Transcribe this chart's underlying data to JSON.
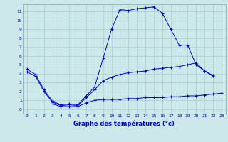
{
  "title": "Graphe des températures (°c)",
  "background_color": "#cce8e8",
  "grid_color": "#aacccc",
  "line_color": "#0000cc",
  "x_labels": [
    "0",
    "1",
    "2",
    "3",
    "4",
    "5",
    "6",
    "7",
    "8",
    "9",
    "10",
    "11",
    "12",
    "13",
    "14",
    "15",
    "16",
    "17",
    "18",
    "19",
    "20",
    "21",
    "22",
    "23"
  ],
  "y_labels": [
    "0",
    "1",
    "2",
    "3",
    "4",
    "5",
    "6",
    "7",
    "8",
    "9",
    "10",
    "11"
  ],
  "ylim": [
    -0.5,
    11.8
  ],
  "xlim": [
    -0.5,
    23.5
  ],
  "line1_x": [
    0,
    1,
    2,
    3,
    4,
    5,
    6,
    7,
    8,
    9,
    10,
    11,
    12,
    13,
    14,
    15,
    16,
    17,
    18,
    19,
    20,
    21,
    22
  ],
  "line1_y": [
    4.5,
    3.9,
    2.2,
    0.9,
    0.5,
    0.6,
    0.5,
    1.5,
    2.5,
    5.7,
    9.0,
    11.2,
    11.1,
    11.3,
    11.4,
    11.5,
    10.8,
    9.0,
    7.2,
    7.2,
    5.0,
    4.3,
    3.8
  ],
  "line2_x": [
    0,
    1,
    2,
    3,
    4,
    5,
    6,
    7,
    8,
    9,
    10,
    11,
    12,
    13,
    14,
    15,
    16,
    17,
    18,
    19,
    20,
    21,
    22
  ],
  "line2_y": [
    4.2,
    3.7,
    2.0,
    0.8,
    0.4,
    0.5,
    0.4,
    1.3,
    2.2,
    3.2,
    3.6,
    3.9,
    4.1,
    4.2,
    4.3,
    4.5,
    4.6,
    4.7,
    4.8,
    5.0,
    5.2,
    4.3,
    3.7
  ],
  "line3_x": [
    3,
    4,
    5,
    6,
    7,
    8,
    9,
    10,
    11,
    12,
    13,
    14,
    15,
    16,
    17,
    18,
    19,
    20,
    21,
    22,
    23
  ],
  "line3_y": [
    0.6,
    0.3,
    0.3,
    0.3,
    0.7,
    1.0,
    1.1,
    1.1,
    1.1,
    1.2,
    1.2,
    1.3,
    1.3,
    1.3,
    1.4,
    1.4,
    1.5,
    1.5,
    1.6,
    1.7,
    1.8
  ]
}
